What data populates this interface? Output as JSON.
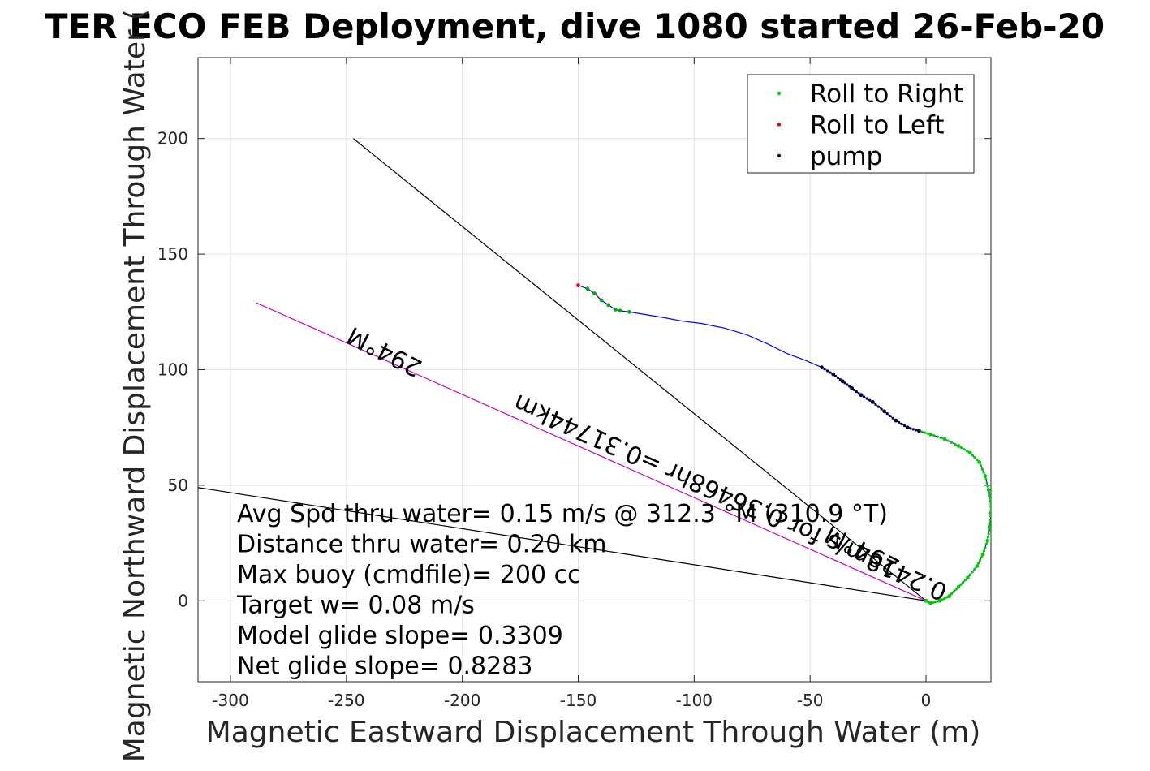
{
  "chart_data": {
    "type": "line",
    "title": "TER ECO FEB Deployment, dive 1080 started 26-Feb-20",
    "xlabel": "Magnetic Eastward Displacement Through Water (m)",
    "ylabel": "Magnetic Northward Displacement Through Water (",
    "xlim": [
      -314,
      28
    ],
    "ylim": [
      -35,
      235
    ],
    "xticks": [
      -300,
      -250,
      -200,
      -150,
      -100,
      -50,
      0
    ],
    "yticks": [
      0,
      50,
      100,
      150,
      200
    ],
    "grid": true,
    "legend_position": "top-right",
    "legend": [
      {
        "label": "Roll to Right",
        "color": "#00cc00"
      },
      {
        "label": "Roll to Left",
        "color": "#ff0000"
      },
      {
        "label": "pump",
        "color": "#000040"
      }
    ],
    "track": {
      "name": "track",
      "color": "#0000ff",
      "x": [
        0,
        2,
        6,
        10,
        14,
        18,
        22,
        24.5,
        26.5,
        27.5,
        28,
        28,
        27,
        25.5,
        23,
        19,
        14,
        8,
        2,
        -3,
        -8,
        -13,
        -18,
        -23,
        -28,
        -32,
        -36,
        -40,
        -45,
        -52,
        -60,
        -68,
        -77,
        -87,
        -97,
        -105,
        -113,
        -122,
        -128,
        -132,
        -134,
        -137,
        -140,
        -143,
        -146,
        -150
      ],
      "y": [
        0,
        -1,
        0,
        2,
        6,
        10,
        15,
        20,
        26,
        32,
        38,
        43,
        48,
        54,
        60,
        64,
        67,
        70,
        72,
        73.5,
        75,
        78,
        82,
        86,
        89,
        92,
        95,
        98,
        101,
        104,
        107,
        111,
        115,
        118,
        120,
        121,
        122.5,
        124,
        125,
        125.5,
        126,
        128,
        130,
        133,
        135,
        136.5
      ]
    },
    "segments": [
      {
        "name": "heading-line",
        "color": "#000000",
        "x": [
          0,
          -247
        ],
        "y": [
          0,
          200
        ]
      },
      {
        "name": "current-line",
        "color": "#000000",
        "x": [
          0,
          -314
        ],
        "y": [
          0,
          49
        ]
      },
      {
        "name": "glide-line",
        "color": "#cc00cc",
        "x": [
          0,
          -289
        ],
        "y": [
          0,
          129
        ]
      }
    ],
    "annotations": [
      {
        "text": "294°M",
        "x": -26,
        "y": 25,
        "rotate": 207
      },
      {
        "text": "0.2418m/s for 0.36468hr =0.31744km",
        "x": -83,
        "y": 48,
        "rotate": 204
      },
      {
        "text": "294°M",
        "x": -232,
        "y": 111,
        "rotate": 207
      }
    ],
    "stats": [
      "Avg Spd thru water=  0.15 m/s @ 312.3 °M (310.9 °T)",
      "Distance thru water=  0.20 km",
      "Max buoy (cmdfile)= 200 cc",
      "Target w= 0.08 m/s",
      "Model glide slope= 0.3309",
      "Net glide slope= 0.8283"
    ]
  }
}
